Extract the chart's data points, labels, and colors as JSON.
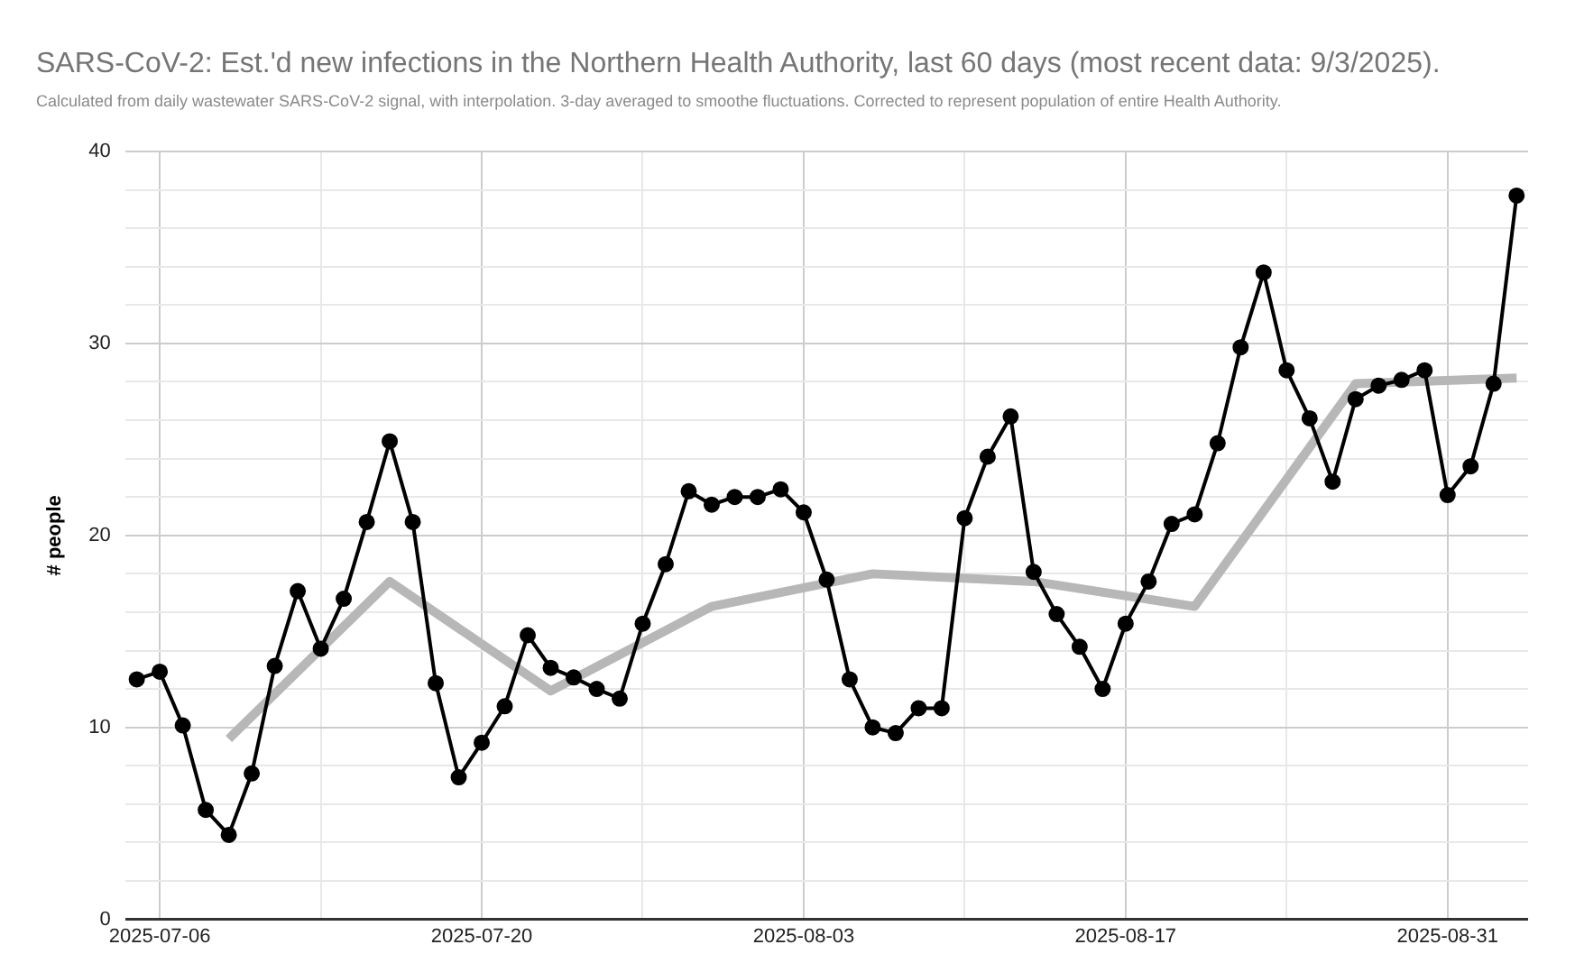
{
  "chart_data": {
    "type": "line",
    "title": "SARS-CoV-2: Est.'d new infections in the Northern Health Authority, last 60 days (most recent data: 9/3/2025).",
    "subtitle": "Calculated from daily wastewater SARS-CoV-2 signal, with interpolation. 3-day averaged to smoothe fluctuations. Corrected to represent population of entire Health Authority.",
    "ylabel": "# people",
    "x": [
      "2025-07-05",
      "2025-07-06",
      "2025-07-07",
      "2025-07-08",
      "2025-07-09",
      "2025-07-10",
      "2025-07-11",
      "2025-07-12",
      "2025-07-13",
      "2025-07-14",
      "2025-07-15",
      "2025-07-16",
      "2025-07-17",
      "2025-07-18",
      "2025-07-19",
      "2025-07-20",
      "2025-07-21",
      "2025-07-22",
      "2025-07-23",
      "2025-07-24",
      "2025-07-25",
      "2025-07-26",
      "2025-07-27",
      "2025-07-28",
      "2025-07-29",
      "2025-07-30",
      "2025-07-31",
      "2025-08-01",
      "2025-08-02",
      "2025-08-03",
      "2025-08-04",
      "2025-08-05",
      "2025-08-06",
      "2025-08-07",
      "2025-08-08",
      "2025-08-09",
      "2025-08-10",
      "2025-08-11",
      "2025-08-12",
      "2025-08-13",
      "2025-08-14",
      "2025-08-15",
      "2025-08-16",
      "2025-08-17",
      "2025-08-18",
      "2025-08-19",
      "2025-08-20",
      "2025-08-21",
      "2025-08-22",
      "2025-08-23",
      "2025-08-24",
      "2025-08-25",
      "2025-08-26",
      "2025-08-27",
      "2025-08-28",
      "2025-08-29",
      "2025-08-30",
      "2025-08-31",
      "2025-09-01",
      "2025-09-02",
      "2025-09-03"
    ],
    "series": [
      {
        "color": "#000000",
        "marker": "circle",
        "values": [
          12.5,
          12.9,
          10.1,
          5.7,
          4.4,
          7.6,
          13.2,
          17.1,
          14.1,
          16.7,
          20.7,
          24.9,
          20.7,
          12.3,
          7.4,
          9.2,
          11.1,
          14.8,
          13.1,
          12.6,
          12.0,
          11.5,
          15.4,
          18.5,
          22.3,
          21.6,
          22.0,
          22.0,
          22.4,
          21.2,
          17.7,
          12.5,
          10.0,
          9.7,
          11.0,
          11.0,
          20.9,
          24.1,
          26.2,
          18.1,
          15.9,
          14.2,
          12.0,
          15.4,
          17.6,
          20.6,
          21.1,
          24.8,
          29.8,
          33.7,
          28.6,
          26.1,
          22.8,
          27.1,
          27.8,
          28.1,
          28.6,
          22.1,
          23.6,
          27.9,
          37.7
        ]
      },
      {
        "color": "#b7b7b7",
        "marker": "none",
        "x": [
          "2025-07-09",
          "2025-07-16",
          "2025-07-23",
          "2025-07-30",
          "2025-08-06",
          "2025-08-13",
          "2025-08-20",
          "2025-08-27",
          "2025-09-03"
        ],
        "values": [
          9.4,
          17.6,
          11.9,
          16.3,
          18.0,
          17.6,
          16.3,
          27.9,
          28.2
        ]
      }
    ],
    "xlim": [
      "2025-07-04T12:00",
      "2025-09-03T12:00"
    ],
    "xticks": [
      "2025-07-06",
      {
        "value": "2025-07-13",
        "label": null
      },
      "2025-07-20",
      {
        "value": "2025-07-27",
        "label": null
      },
      "2025-08-03",
      {
        "value": "2025-08-10",
        "label": null
      },
      "2025-08-17",
      {
        "value": "2025-08-24",
        "label": null
      },
      "2025-08-31"
    ],
    "ylim": [
      0,
      40
    ],
    "yticks": [
      0,
      {
        "value": 2,
        "label": null
      },
      {
        "value": 4,
        "label": null
      },
      {
        "value": 6,
        "label": null
      },
      {
        "value": 8,
        "label": null
      },
      10,
      {
        "value": 12,
        "label": null
      },
      {
        "value": 14,
        "label": null
      },
      {
        "value": 16,
        "label": null
      },
      {
        "value": 18,
        "label": null
      },
      20,
      {
        "value": 22,
        "label": null
      },
      {
        "value": 24,
        "label": null
      },
      {
        "value": 26,
        "label": null
      },
      {
        "value": 28,
        "label": null
      },
      30,
      {
        "value": 32,
        "label": null
      },
      {
        "value": 34,
        "label": null
      },
      {
        "value": 36,
        "label": null
      },
      {
        "value": 38,
        "label": null
      },
      40
    ],
    "grid": true,
    "legend": false
  }
}
